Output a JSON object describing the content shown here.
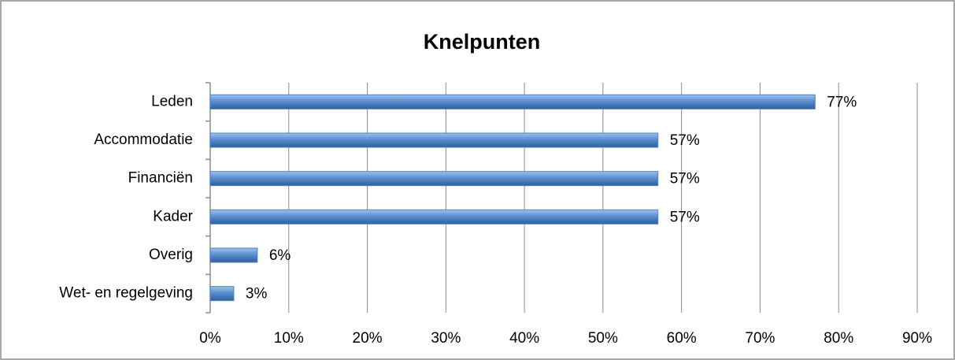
{
  "chart_data": {
    "type": "bar",
    "orientation": "horizontal",
    "title": "Knelpunten",
    "categories": [
      "Leden",
      "Accommodatie",
      "Financiën",
      "Kader",
      "Overig",
      "Wet- en regelgeving"
    ],
    "values": [
      77,
      57,
      57,
      57,
      6,
      3
    ],
    "value_labels": [
      "77%",
      "57%",
      "57%",
      "57%",
      "6%",
      "3%"
    ],
    "color": "#4f81bd",
    "xlim": [
      0,
      90
    ],
    "xticks": [
      {
        "value": 0,
        "label": "0%"
      },
      {
        "value": 10,
        "label": "10%"
      },
      {
        "value": 20,
        "label": "20%"
      },
      {
        "value": 30,
        "label": "30%"
      },
      {
        "value": 40,
        "label": "40%"
      },
      {
        "value": 50,
        "label": "50%"
      },
      {
        "value": 60,
        "label": "60%"
      },
      {
        "value": 70,
        "label": "70%"
      },
      {
        "value": 80,
        "label": "80%"
      },
      {
        "value": 90,
        "label": "90%"
      }
    ],
    "grid": true
  }
}
